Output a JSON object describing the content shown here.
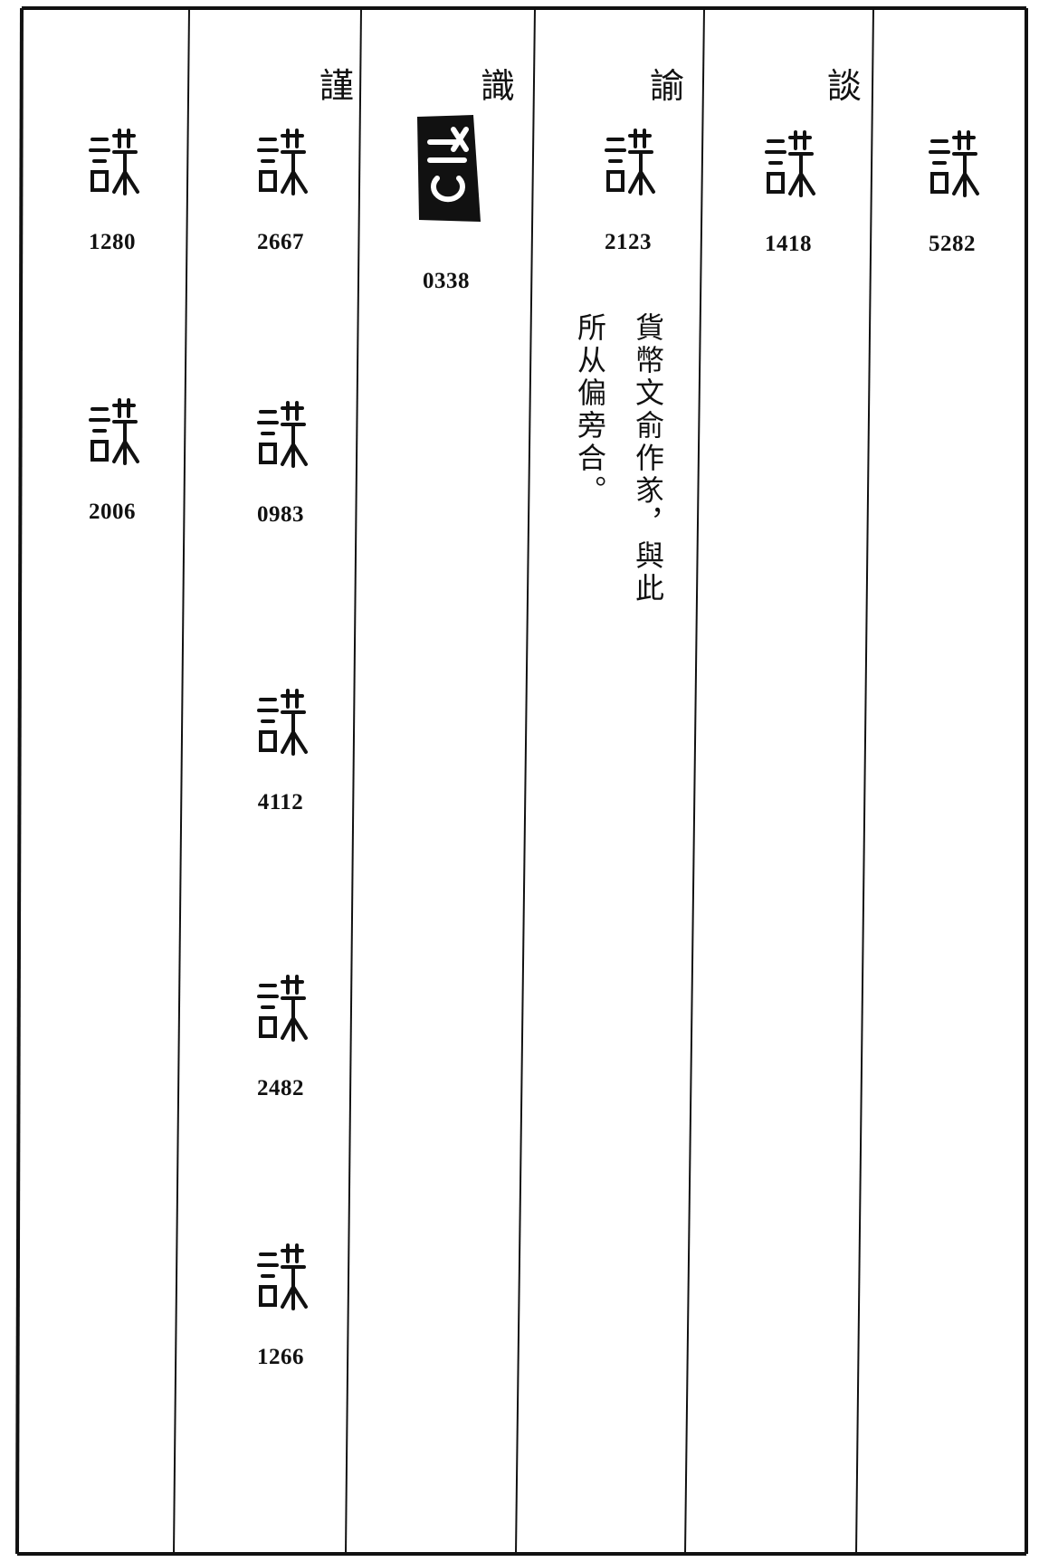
{
  "columns": [
    {
      "entries": [
        "1280",
        "2006"
      ]
    },
    {
      "heading": "謹",
      "entries": [
        "2667",
        "0983",
        "4112",
        "2482",
        "1266"
      ]
    },
    {
      "heading": "識",
      "entries": [
        "0338"
      ]
    },
    {
      "heading": "諭",
      "entries": [
        "2123"
      ],
      "note": [
        "貨幣文俞作㒸，與此",
        "所从偏旁合。"
      ]
    },
    {
      "heading": "談",
      "entries": [
        "1418"
      ]
    },
    {
      "entries": [
        "5282"
      ]
    }
  ]
}
